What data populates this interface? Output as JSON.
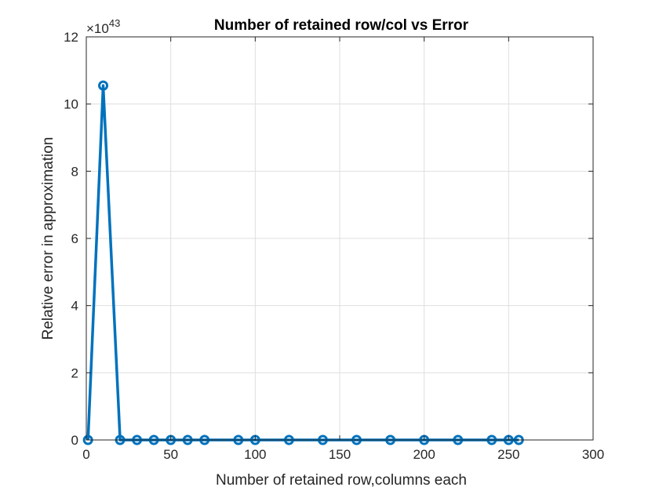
{
  "chart_data": {
    "type": "line",
    "title": "Number of retained row/col vs Error",
    "xlabel": "Number of retained row,columns each",
    "ylabel": "Relative error in approximation",
    "xlim": [
      0,
      300
    ],
    "ylim": [
      0,
      12
    ],
    "xticks": [
      0,
      50,
      100,
      150,
      200,
      250,
      300
    ],
    "yticks": [
      0,
      2,
      4,
      6,
      8,
      10,
      12
    ],
    "xtick_labels": [
      "0",
      "50",
      "100",
      "150",
      "200",
      "250",
      "300"
    ],
    "ytick_labels": [
      "0",
      "2",
      "4",
      "6",
      "8",
      "10",
      "12"
    ],
    "y_multiplier": {
      "base": "×10",
      "exponent": "43"
    },
    "grid": true,
    "legend": "none",
    "marker": "circle",
    "color": "#0072BD",
    "series": [
      {
        "x": [
          1,
          10,
          20,
          30,
          40,
          50,
          60,
          70,
          90,
          100,
          120,
          140,
          160,
          180,
          200,
          220,
          240,
          250,
          256
        ],
        "values": [
          0,
          10.55,
          0,
          0,
          0,
          0,
          0,
          0,
          0,
          0,
          0,
          0,
          0,
          0,
          0,
          0,
          0,
          0,
          0
        ]
      }
    ]
  }
}
